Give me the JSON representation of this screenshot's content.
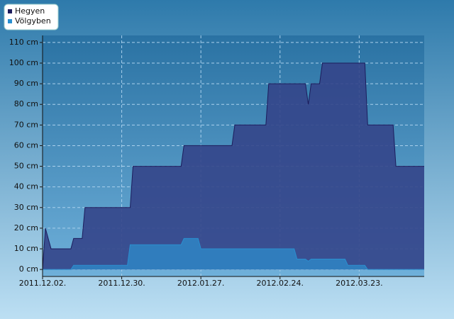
{
  "chart_data": {
    "type": "area",
    "x": [
      "2011.12.02.",
      "2011.12.03.",
      "2011.12.05.",
      "2011.12.12.",
      "2011.12.13.",
      "2011.12.16.",
      "2011.12.17.",
      "2012.01.01.",
      "2012.01.02.",
      "2012.01.03.",
      "2012.01.20.",
      "2012.01.21.",
      "2012.01.26.",
      "2012.01.27.",
      "2012.02.07.",
      "2012.02.08.",
      "2012.02.19.",
      "2012.02.20.",
      "2012.02.29.",
      "2012.03.01.",
      "2012.03.04.",
      "2012.03.05.",
      "2012.03.06.",
      "2012.03.09.",
      "2012.03.10.",
      "2012.03.18.",
      "2012.03.19.",
      "2012.03.25.",
      "2012.03.26.",
      "2012.04.04.",
      "2012.04.05.",
      "2012.04.15."
    ],
    "series": [
      {
        "name": "Hegyen",
        "color": "#1c1c5c",
        "fill": "#34458a",
        "values": [
          0,
          20,
          10,
          10,
          15,
          15,
          30,
          30,
          30,
          50,
          50,
          60,
          60,
          60,
          60,
          70,
          70,
          90,
          90,
          90,
          90,
          80,
          90,
          90,
          100,
          100,
          100,
          100,
          70,
          70,
          50,
          50
        ]
      },
      {
        "name": "Völgyben",
        "color": "#2a8fd0",
        "fill": "#2f7fc0",
        "values": [
          0,
          0,
          0,
          0,
          2,
          2,
          2,
          2,
          12,
          12,
          12,
          15,
          15,
          10,
          10,
          10,
          10,
          10,
          10,
          5,
          5,
          4,
          5,
          5,
          5,
          5,
          2,
          2,
          0,
          0,
          0,
          0
        ]
      }
    ],
    "xlim": [
      "2011.12.02.",
      "2012.04.15."
    ],
    "xticks": [
      "2011.12.02.",
      "2011.12.30.",
      "2012.01.27.",
      "2012.02.24.",
      "2012.03.23."
    ],
    "ylim": [
      -3.4,
      113.4
    ],
    "yticks": [
      {
        "value": 0,
        "label": "0 cm"
      },
      {
        "value": 10,
        "label": "10 cm"
      },
      {
        "value": 20,
        "label": "20 cm"
      },
      {
        "value": 30,
        "label": "30 cm"
      },
      {
        "value": 40,
        "label": "40 cm"
      },
      {
        "value": 50,
        "label": "50 cm"
      },
      {
        "value": 60,
        "label": "60 cm"
      },
      {
        "value": 70,
        "label": "70 cm"
      },
      {
        "value": 80,
        "label": "80 cm"
      },
      {
        "value": 90,
        "label": "90 cm"
      },
      {
        "value": 100,
        "label": "100 cm"
      },
      {
        "value": 110,
        "label": "110 cm"
      }
    ],
    "grid": true,
    "legend": "top-left"
  }
}
